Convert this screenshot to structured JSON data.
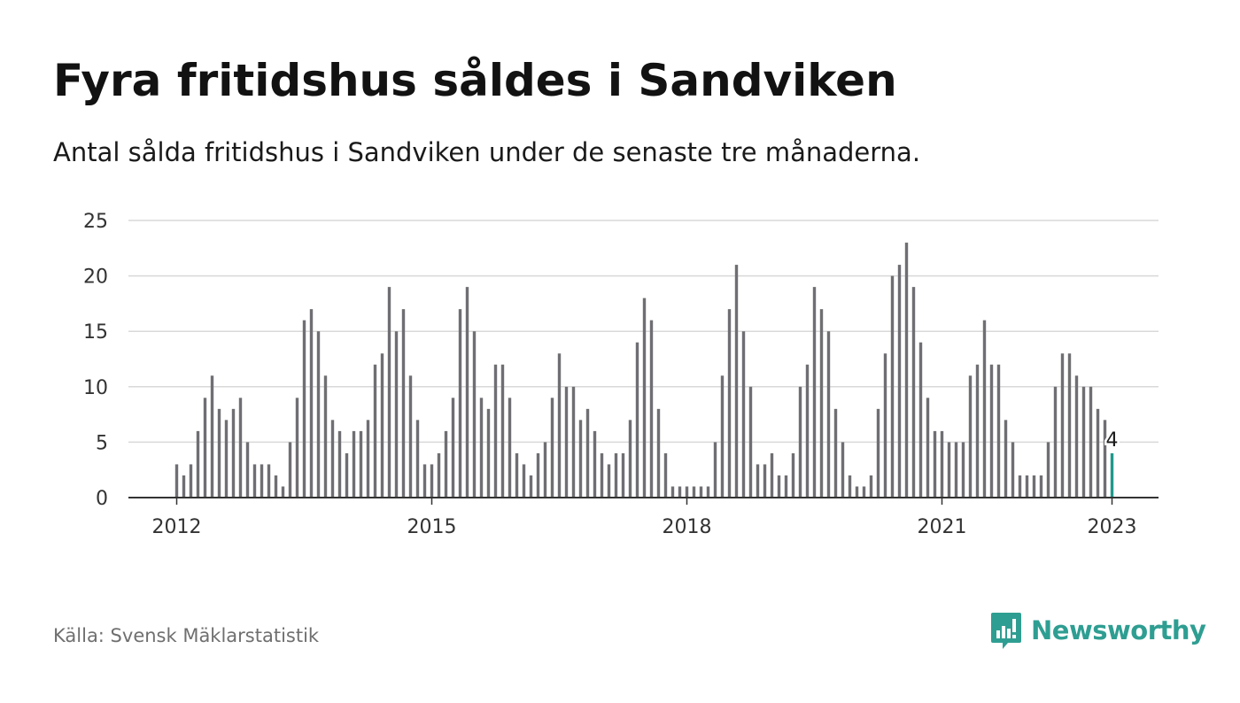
{
  "title": "Fyra fritidshus såldes i Sandviken",
  "subtitle": "Antal sålda fritidshus i Sandviken under de senaste tre månaderna.",
  "source": "Källa: Svensk Mäklarstatistik",
  "brand": {
    "name": "Newsworthy",
    "icon": "newsworthy-logo-icon",
    "color": "#2f9e92"
  },
  "colors": {
    "bar": "#6f6f73",
    "highlight": "#1f9a8c",
    "grid": "#d9d9d9",
    "axis": "#333333"
  },
  "chart_data": {
    "type": "bar",
    "title": "",
    "xlabel": "",
    "ylabel": "",
    "ylim": [
      0,
      25
    ],
    "yticks": [
      "0",
      "5",
      "10",
      "15",
      "20",
      "25"
    ],
    "xticks": [
      "2012",
      "2015",
      "2018",
      "2021",
      "2023"
    ],
    "x_start": "2012-01",
    "x_end": "2023-01",
    "interval": "month",
    "grid": true,
    "highlight_label": "4",
    "values": [
      3,
      2,
      3,
      6,
      9,
      11,
      8,
      7,
      8,
      9,
      5,
      3,
      3,
      3,
      2,
      1,
      5,
      9,
      16,
      17,
      15,
      11,
      7,
      6,
      4,
      6,
      6,
      7,
      12,
      13,
      19,
      15,
      17,
      11,
      7,
      3,
      3,
      4,
      6,
      9,
      17,
      19,
      15,
      9,
      8,
      12,
      12,
      9,
      4,
      3,
      2,
      4,
      5,
      9,
      13,
      10,
      10,
      7,
      8,
      6,
      4,
      3,
      4,
      4,
      7,
      14,
      18,
      16,
      8,
      4,
      1,
      1,
      1,
      1,
      1,
      1,
      5,
      11,
      17,
      21,
      15,
      10,
      3,
      3,
      4,
      2,
      2,
      4,
      10,
      12,
      19,
      17,
      15,
      8,
      5,
      2,
      1,
      1,
      2,
      8,
      13,
      20,
      21,
      23,
      19,
      14,
      9,
      6,
      6,
      5,
      5,
      5,
      11,
      12,
      16,
      12,
      12,
      7,
      5,
      2,
      2,
      2,
      2,
      5,
      10,
      13,
      13,
      11,
      10,
      10,
      8,
      7,
      4
    ]
  }
}
